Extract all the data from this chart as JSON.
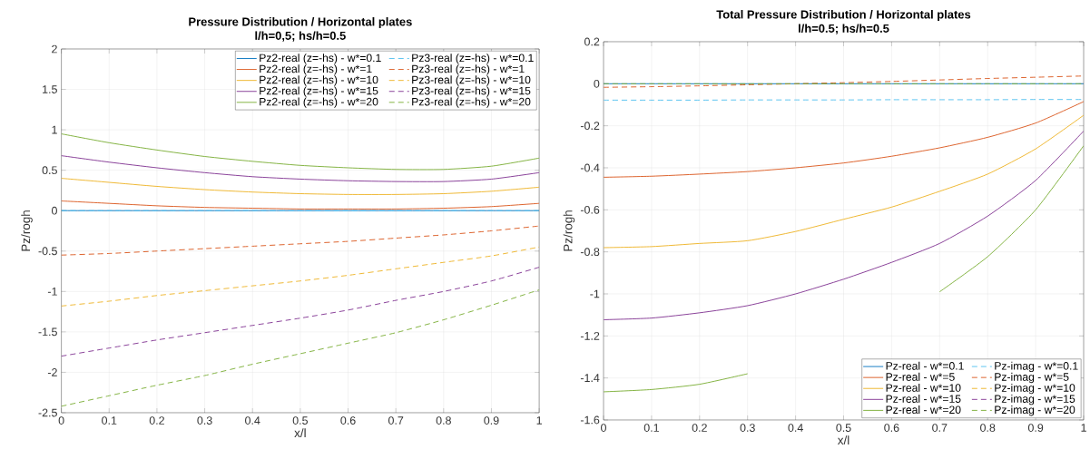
{
  "chart_data": [
    {
      "type": "line",
      "title": "Pressure Distribution / Horizontal plates",
      "subtitle": "l/h=0,5; hs/h=0.5",
      "xlabel": "x/l",
      "ylabel": "Pz/rogh",
      "x": [
        0,
        0.1,
        0.2,
        0.3,
        0.4,
        0.5,
        0.6,
        0.7,
        0.8,
        0.9,
        1
      ],
      "xlim": [
        0,
        1
      ],
      "xticks": [
        0,
        0.1,
        0.2,
        0.3,
        0.4,
        0.5,
        0.6,
        0.7,
        0.8,
        0.9,
        1
      ],
      "ylim": [
        -2.5,
        2
      ],
      "yticks": [
        -2.5,
        -2,
        -1.5,
        -1,
        -0.5,
        0,
        0.5,
        1,
        1.5,
        2
      ],
      "grid": true,
      "legend": "top right",
      "series": [
        {
          "name": "Pz2-real (z=-hs) - w*=0.1",
          "color": "#0072bd",
          "line_style": "solid",
          "values": [
            0,
            0,
            0,
            0,
            0,
            0,
            0,
            0,
            0,
            0,
            0
          ]
        },
        {
          "name": "Pz2-real (z=-hs) - w*=1",
          "color": "#d95319",
          "line_style": "solid",
          "values": [
            0.12,
            0.09,
            0.06,
            0.04,
            0.03,
            0.02,
            0.02,
            0.02,
            0.03,
            0.05,
            0.09
          ]
        },
        {
          "name": "Pz2-real (z=-hs) - w*=10",
          "color": "#edb120",
          "line_style": "solid",
          "values": [
            0.4,
            0.35,
            0.3,
            0.26,
            0.23,
            0.21,
            0.2,
            0.2,
            0.21,
            0.24,
            0.29
          ]
        },
        {
          "name": "Pz2-real (z=-hs) - w*=15",
          "color": "#7e2f8e",
          "line_style": "solid",
          "values": [
            0.68,
            0.6,
            0.53,
            0.47,
            0.42,
            0.39,
            0.37,
            0.36,
            0.36,
            0.39,
            0.47
          ]
        },
        {
          "name": "Pz2-real (z=-hs) - w*=20",
          "color": "#77ac30",
          "line_style": "solid",
          "values": [
            0.95,
            0.84,
            0.75,
            0.67,
            0.61,
            0.56,
            0.53,
            0.51,
            0.51,
            0.55,
            0.65
          ]
        },
        {
          "name": "Pz3-real (z=-hs) - w*=0.1",
          "color": "#4dbeee",
          "line_style": "dashed",
          "values": [
            0,
            0,
            0,
            0,
            0,
            0,
            0,
            0,
            0,
            0,
            0
          ]
        },
        {
          "name": "Pz3-real (z=-hs) - w*=1",
          "color": "#d95319",
          "line_style": "dashed",
          "values": [
            -0.55,
            -0.53,
            -0.5,
            -0.47,
            -0.44,
            -0.41,
            -0.38,
            -0.34,
            -0.3,
            -0.25,
            -0.19
          ]
        },
        {
          "name": "Pz3-real (z=-hs) - w*=10",
          "color": "#edb120",
          "line_style": "dashed",
          "values": [
            -1.18,
            -1.12,
            -1.05,
            -0.99,
            -0.93,
            -0.87,
            -0.8,
            -0.72,
            -0.64,
            -0.56,
            -0.45
          ]
        },
        {
          "name": "Pz3-real (z=-hs) - w*=15",
          "color": "#7e2f8e",
          "line_style": "dashed",
          "values": [
            -1.8,
            -1.7,
            -1.6,
            -1.51,
            -1.42,
            -1.33,
            -1.23,
            -1.11,
            -1.0,
            -0.87,
            -0.7
          ]
        },
        {
          "name": "Pz3-real (z=-hs) - w*=20",
          "color": "#77ac30",
          "line_style": "dashed",
          "values": [
            -2.42,
            -2.29,
            -2.16,
            -2.04,
            -1.9,
            -1.77,
            -1.64,
            -1.51,
            -1.35,
            -1.17,
            -0.98
          ]
        }
      ]
    },
    {
      "type": "line",
      "title": "Total Pressure Distribution / Horizontal plates",
      "subtitle": "l/h=0.5; hs/h=0.5",
      "xlabel": "x/l",
      "ylabel": "Pz/rogh",
      "x": [
        0,
        0.1,
        0.2,
        0.3,
        0.4,
        0.5,
        0.6,
        0.7,
        0.8,
        0.9,
        1
      ],
      "xlim": [
        0,
        1
      ],
      "xticks": [
        0,
        0.1,
        0.2,
        0.3,
        0.4,
        0.5,
        0.6,
        0.7,
        0.8,
        0.9,
        1
      ],
      "ylim": [
        -1.6,
        0.2
      ],
      "yticks": [
        -1.6,
        -1.4,
        -1.2,
        -1,
        -0.8,
        -0.6,
        -0.4,
        -0.2,
        0,
        0.2
      ],
      "grid": true,
      "legend": "bottom right",
      "series": [
        {
          "name": "Pz-real - w*=0.1",
          "color": "#0072bd",
          "line_style": "solid",
          "values": [
            0,
            0,
            0,
            0,
            0,
            0,
            0,
            0,
            0,
            0,
            0
          ]
        },
        {
          "name": "Pz-real - w*=5",
          "color": "#d95319",
          "line_style": "solid",
          "values": [
            -0.445,
            -0.44,
            -0.43,
            -0.418,
            -0.4,
            -0.377,
            -0.345,
            -0.305,
            -0.255,
            -0.187,
            -0.085
          ]
        },
        {
          "name": "Pz-real - w*=10",
          "color": "#edb120",
          "line_style": "solid",
          "values": [
            -0.78,
            -0.775,
            -0.76,
            -0.747,
            -0.703,
            -0.645,
            -0.587,
            -0.512,
            -0.43,
            -0.31,
            -0.15
          ]
        },
        {
          "name": "Pz-real - w*=15",
          "color": "#7e2f8e",
          "line_style": "solid",
          "values": [
            -1.123,
            -1.115,
            -1.09,
            -1.056,
            -1.0,
            -0.93,
            -0.85,
            -0.76,
            -0.63,
            -0.46,
            -0.225
          ]
        },
        {
          "name": "Pz-real - w*=20",
          "color": "#77ac30",
          "line_style": "solid",
          "values": [
            -1.466,
            -1.455,
            -1.43,
            -1.38,
            null,
            null,
            null,
            -0.99,
            -0.823,
            -0.6,
            -0.295
          ]
        },
        {
          "name": "Pz-imag - w*=0.1",
          "color": "#4dbeee",
          "line_style": "dashed",
          "values": [
            -0.078,
            -0.078,
            -0.078,
            -0.077,
            -0.077,
            -0.077,
            -0.076,
            -0.076,
            -0.076,
            -0.075,
            -0.075
          ]
        },
        {
          "name": "Pz-imag - w*=5",
          "color": "#d95319",
          "line_style": "dashed",
          "values": [
            -0.017,
            -0.014,
            -0.01,
            -0.005,
            0,
            0.005,
            0.011,
            0.018,
            0.025,
            0.031,
            0.037
          ]
        },
        {
          "name": "Pz-imag - w*=10",
          "color": "#edb120",
          "line_style": "dashed",
          "values": [
            null,
            null,
            null,
            null,
            null,
            null,
            null,
            null,
            null,
            null,
            null
          ]
        },
        {
          "name": "Pz-imag - w*=15",
          "color": "#7e2f8e",
          "line_style": "dashed",
          "values": [
            null,
            null,
            null,
            null,
            null,
            null,
            null,
            null,
            null,
            null,
            null
          ]
        },
        {
          "name": "Pz-imag - w*=20",
          "color": "#77ac30",
          "line_style": "dashed",
          "values": [
            0,
            0,
            0,
            0,
            0,
            0,
            0,
            0,
            0,
            0,
            0
          ]
        }
      ]
    }
  ]
}
